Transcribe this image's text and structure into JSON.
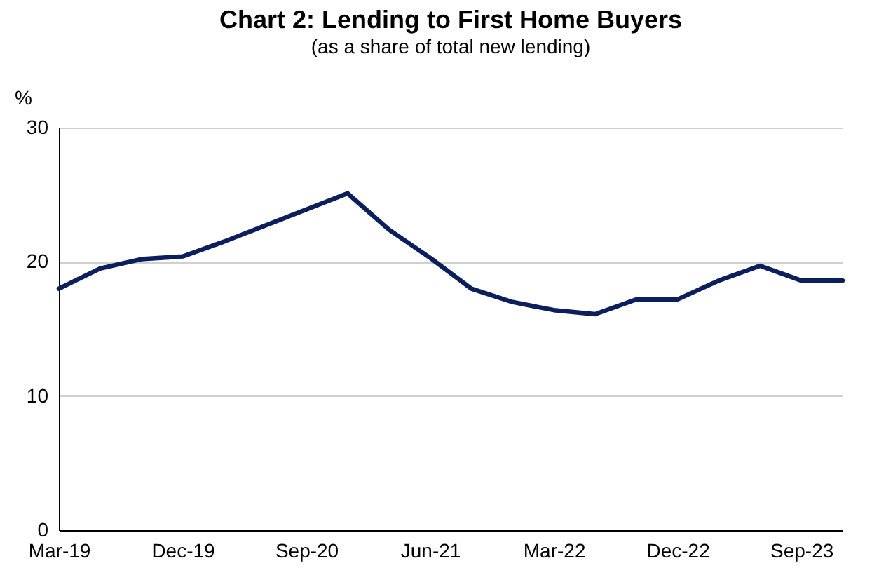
{
  "chart_data": {
    "type": "line",
    "title": "Chart 2: Lending to First Home Buyers",
    "subtitle": "(as a share of total new lending)",
    "ylabel": "%",
    "categories": [
      "Mar-19",
      null,
      null,
      "Dec-19",
      null,
      null,
      "Sep-20",
      null,
      null,
      "Jun-21",
      null,
      null,
      "Mar-22",
      null,
      null,
      "Dec-22",
      null,
      null,
      "Sep-23",
      null
    ],
    "series": [
      {
        "color": "#0a1f5c",
        "values": [
          18.0,
          19.5,
          20.2,
          20.4,
          21.5,
          22.7,
          23.9,
          25.1,
          22.4,
          20.3,
          18.0,
          17.0,
          16.4,
          16.1,
          17.2,
          17.2,
          18.6,
          19.7,
          18.6,
          18.6
        ]
      }
    ],
    "ylim": [
      0,
      30
    ],
    "yticks": [
      0,
      10,
      20,
      30
    ],
    "grid": "y"
  }
}
